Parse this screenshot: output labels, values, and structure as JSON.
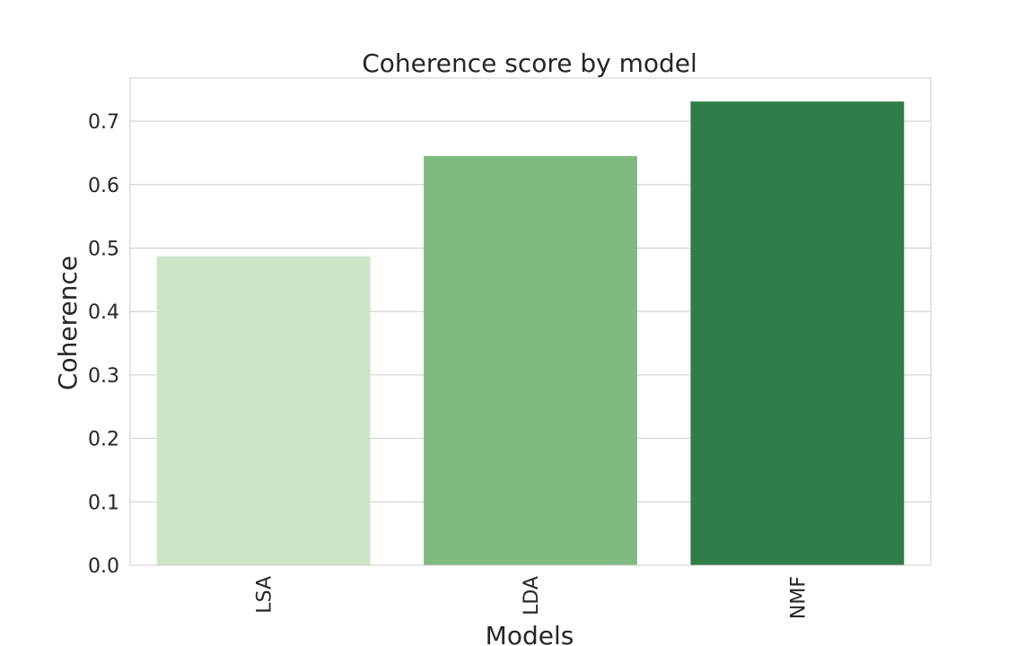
{
  "chart_data": {
    "type": "bar",
    "title": "Coherence score by model",
    "xlabel": "Models",
    "ylabel": "Coherence",
    "categories": [
      "LSA",
      "LDA",
      "NMF"
    ],
    "values": [
      0.487,
      0.645,
      0.731
    ],
    "colors": [
      "#cce5c7",
      "#7fbb80",
      "#2f7d4a"
    ],
    "ylim": [
      0,
      0.768
    ],
    "yticks": [
      0.0,
      0.1,
      0.2,
      0.3,
      0.4,
      0.5,
      0.6,
      0.7
    ],
    "ytick_labels": [
      "0.0",
      "0.1",
      "0.2",
      "0.3",
      "0.4",
      "0.5",
      "0.6",
      "0.7"
    ],
    "grid": true,
    "gridColor": "#cccccc",
    "spineColor": "#cccccc",
    "xtick_rotation": "vertical"
  }
}
